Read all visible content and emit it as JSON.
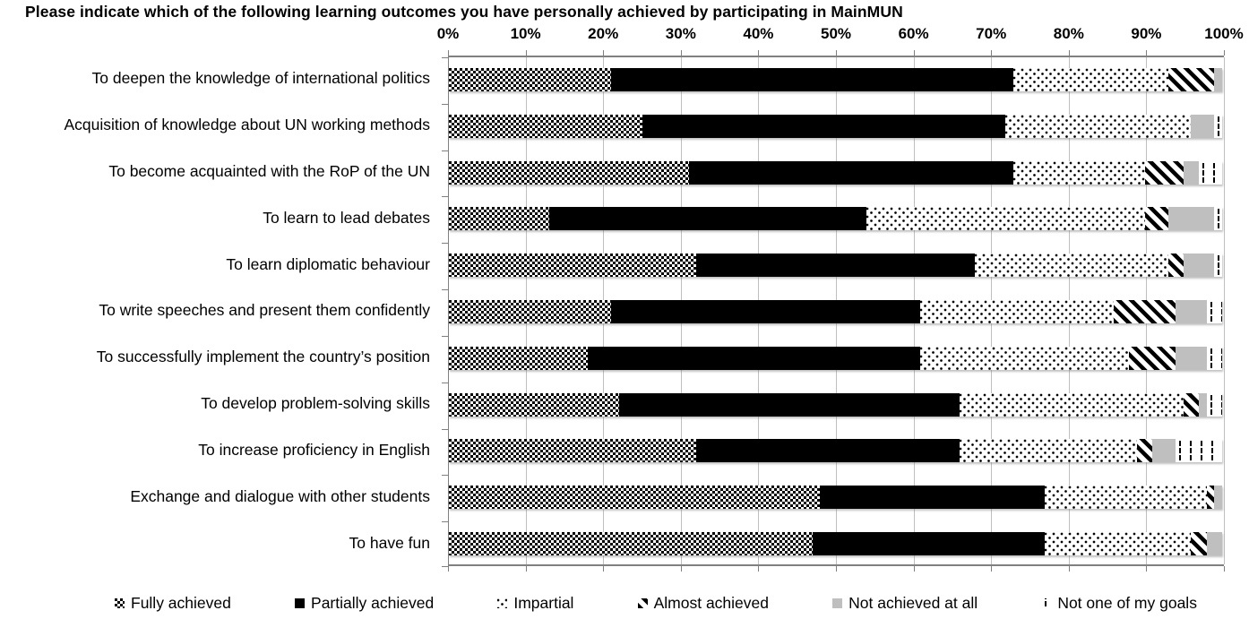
{
  "title": "Please indicate which of the following learning outcomes you have personally achieved by participating in MainMUN",
  "chart_data": {
    "type": "bar",
    "orientation": "horizontal",
    "stacked": true,
    "unit": "%",
    "grid": true,
    "legend_position": "bottom",
    "xlim": [
      0,
      100
    ],
    "x_ticks": [
      "0%",
      "10%",
      "20%",
      "30%",
      "40%",
      "50%",
      "60%",
      "70%",
      "80%",
      "90%",
      "100%"
    ],
    "categories": [
      "To deepen the knowledge of international politics",
      "Acquisition of knowledge about UN working methods",
      "To become acquainted with the  RoP of the UN",
      "To learn to lead debates",
      "To learn diplomatic behaviour",
      "To write speeches and present them confidently",
      "To successfully implement the country’s position",
      "To develop problem-solving skills",
      "To increase proficiency in English",
      "Exchange and dialogue with other students",
      "To have fun"
    ],
    "series": [
      {
        "name": "Fully achieved",
        "pattern": "black-white-checker",
        "values": [
          21,
          25,
          31,
          13,
          32,
          21,
          18,
          22,
          32,
          48,
          47
        ]
      },
      {
        "name": "Partially achieved",
        "pattern": "solid-black",
        "values": [
          52,
          47,
          42,
          41,
          36,
          40,
          43,
          44,
          34,
          29,
          30
        ]
      },
      {
        "name": "Impartial",
        "pattern": "white-with-black-dots",
        "values": [
          20,
          24,
          17,
          36,
          25,
          25,
          27,
          29,
          23,
          21,
          19
        ]
      },
      {
        "name": "Almost achieved",
        "pattern": "black-diagonal-stripes",
        "values": [
          6,
          0,
          5,
          3,
          2,
          8,
          6,
          2,
          2,
          1,
          2
        ]
      },
      {
        "name": "Not achieved at all",
        "pattern": "solid-gray",
        "values": [
          1,
          3,
          2,
          6,
          4,
          4,
          4,
          1,
          3,
          1,
          2
        ]
      },
      {
        "name": "Not one of my goals",
        "pattern": "vertical-black-dashes",
        "values": [
          0,
          1,
          3,
          1,
          1,
          2,
          2,
          2,
          6,
          0,
          0
        ]
      }
    ]
  },
  "colors": {
    "bar_black": "#000000",
    "bar_gray": "#bfbfbf",
    "gridline": "#bfbfbf",
    "axis_line": "#808080",
    "text": "#000000"
  }
}
